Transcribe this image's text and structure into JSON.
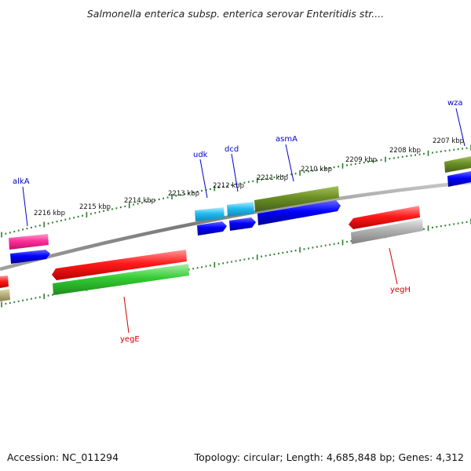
{
  "title": "Salmonella enterica subsp. enterica serovar Enteritidis str....",
  "footer": {
    "accession": "Accession: NC_011294",
    "stats": "Topology: circular; Length: 4,685,848 bp; Genes: 4,312"
  },
  "ruler_labels": [
    "2216 kbp",
    "2215 kbp",
    "2214 kbp",
    "2213 kbp",
    "2212 kbp",
    "2211 kbp",
    "2210 kbp",
    "2209 kbp",
    "2208 kbp",
    "2207 kbp"
  ],
  "gene_labels": {
    "alkA": "alkA",
    "udk": "udk",
    "dcd": "dcd",
    "asmA": "asmA",
    "wza": "wza",
    "yegE": "yegE",
    "yegH": "yegH"
  },
  "colors": {
    "label_forward": "#0000cc",
    "label_reverse": "#cc0000",
    "tick": "#2e7d2e",
    "backbone": "#808080",
    "red": "#ff0000",
    "blue": "#0000ff",
    "green": "#33cc33",
    "olive": "#6b8e23",
    "pink": "#ff3399",
    "cyan": "#22bbee",
    "gray": "#b0b0b0",
    "khaki": "#b8b080"
  }
}
